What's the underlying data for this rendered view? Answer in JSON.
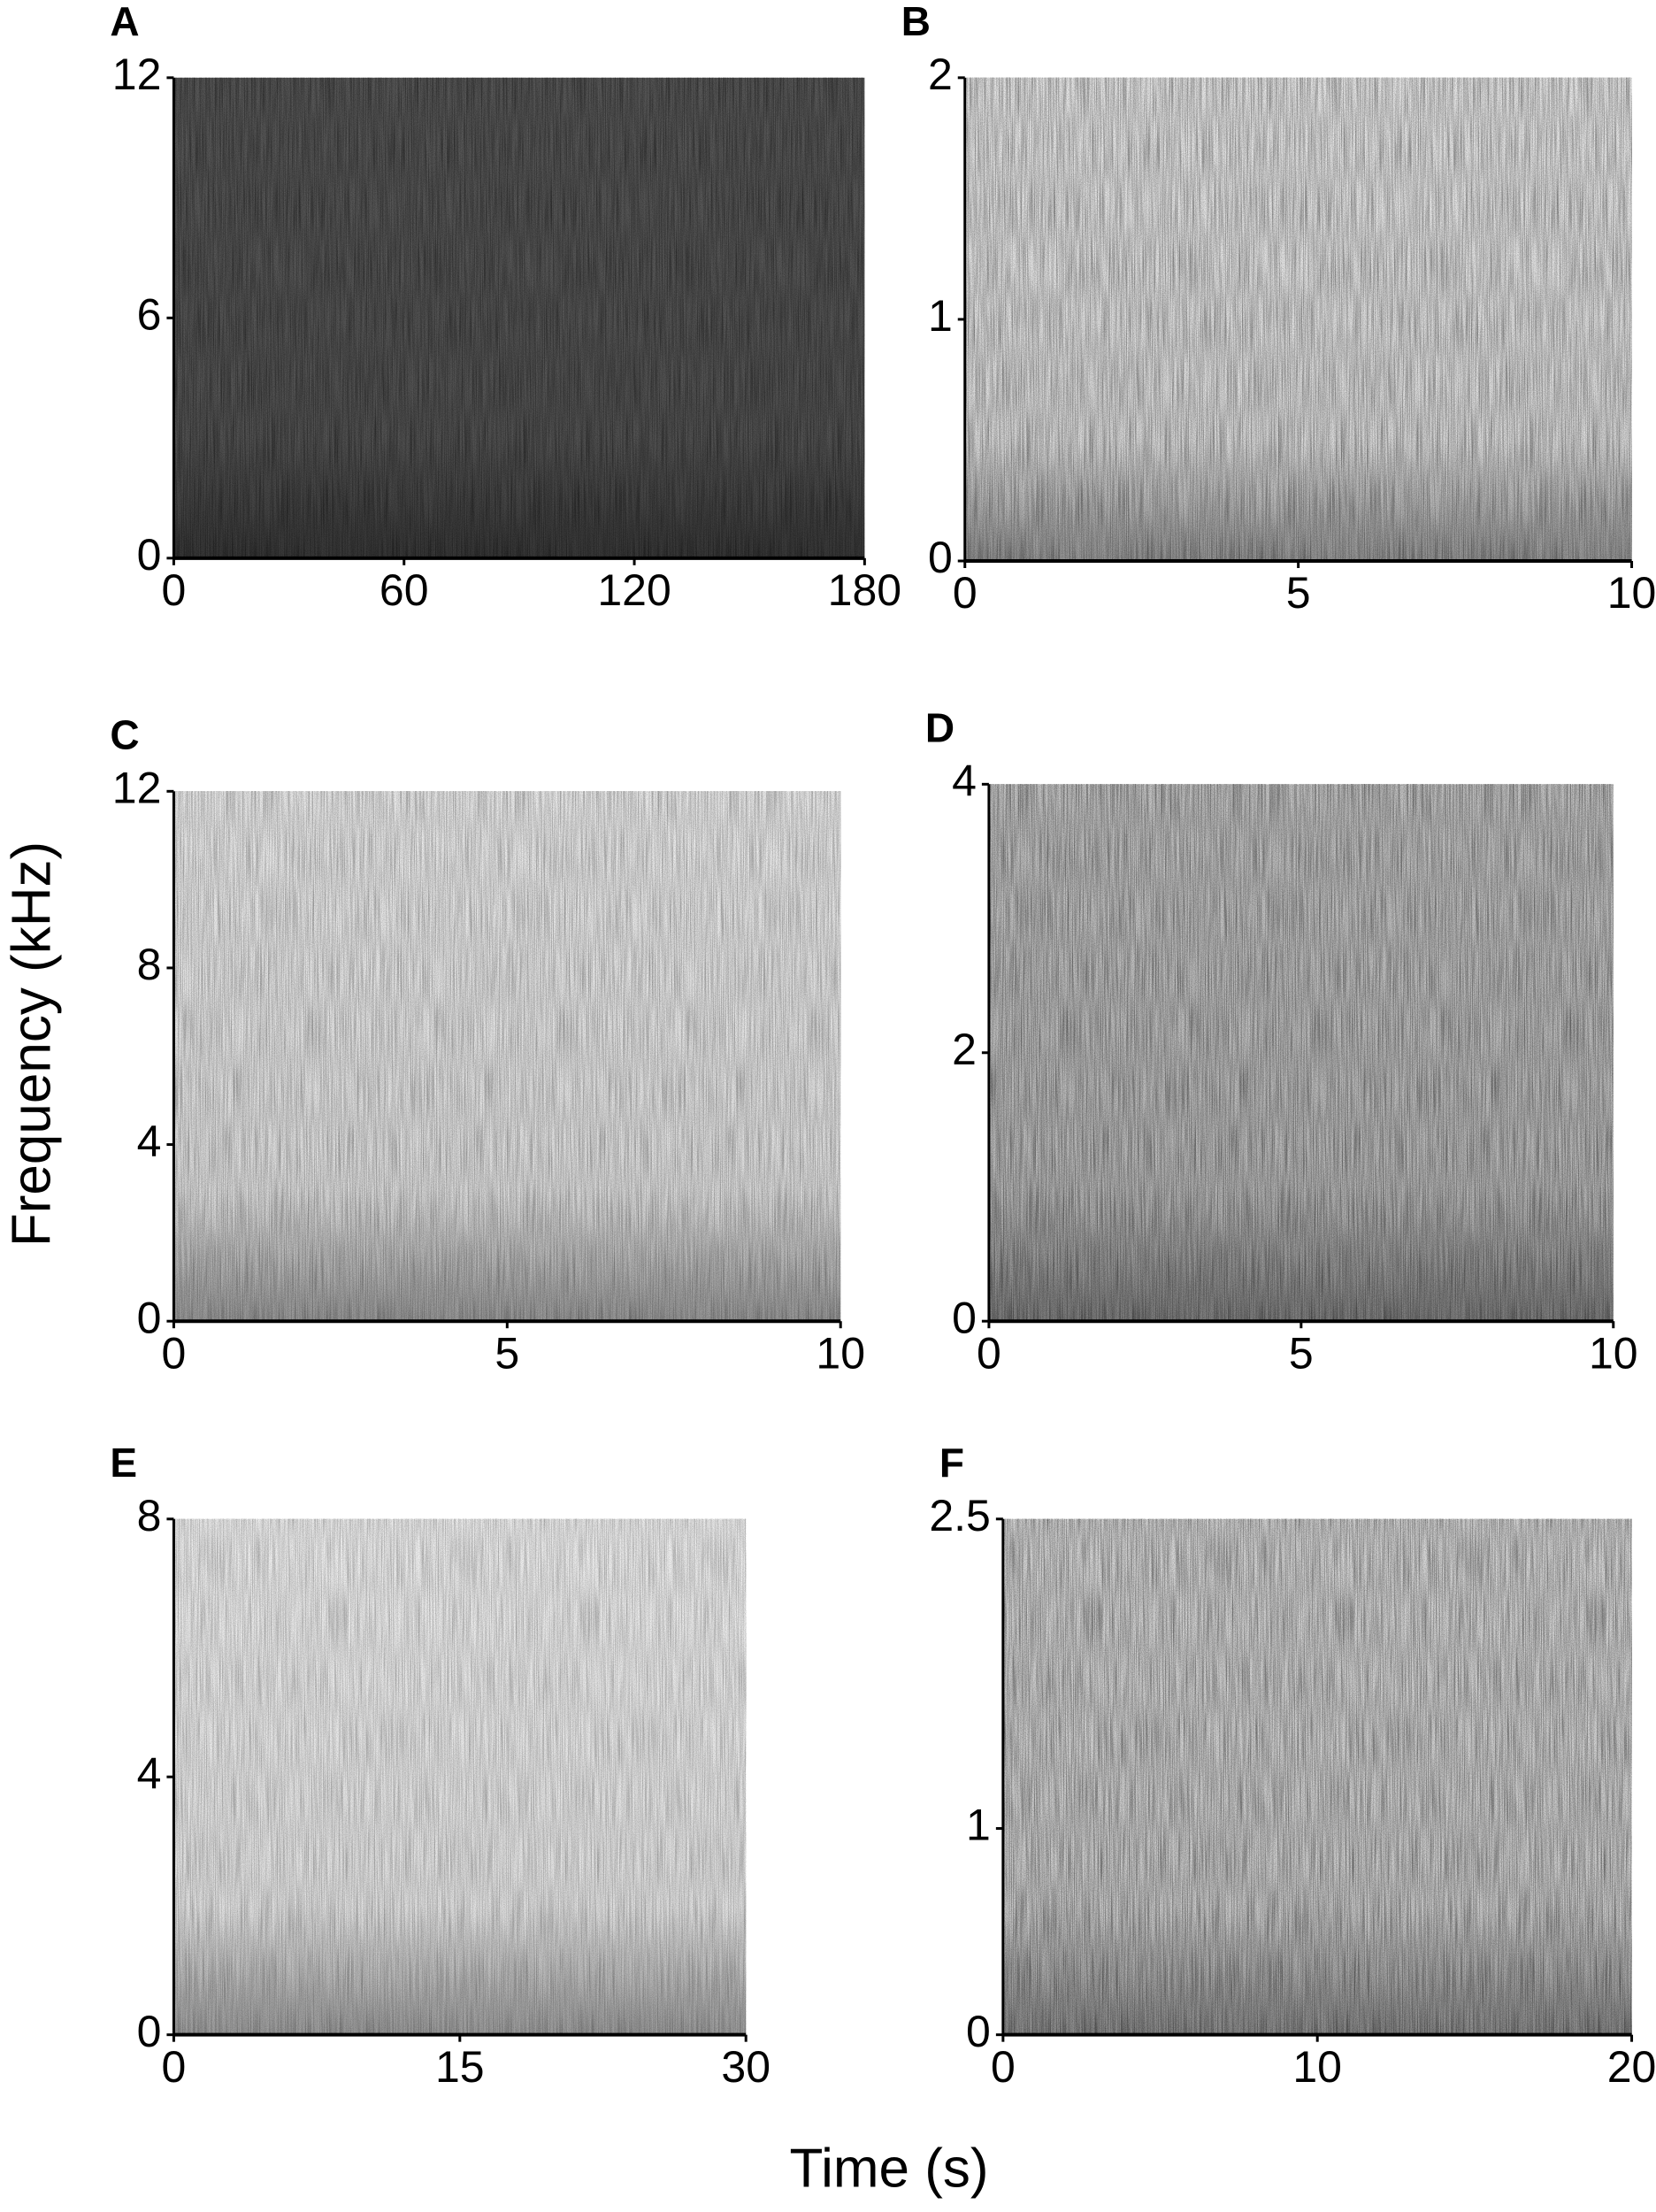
{
  "figure": {
    "ylabel": "Frequency (kHz)",
    "xlabel": "Time (s)"
  },
  "chart_data": [
    {
      "type": "spectrogram",
      "label": "A",
      "xlim": [
        0,
        180
      ],
      "xticks": [
        0,
        60,
        120,
        180
      ],
      "ylim": [
        0,
        12
      ],
      "yticks": [
        0,
        6,
        12
      ]
    },
    {
      "type": "spectrogram",
      "label": "B",
      "xlim": [
        0,
        10
      ],
      "xticks": [
        0,
        5,
        10
      ],
      "ylim": [
        0,
        2
      ],
      "yticks": [
        0,
        1,
        2
      ]
    },
    {
      "type": "spectrogram",
      "label": "C",
      "xlim": [
        0,
        10
      ],
      "xticks": [
        0,
        5,
        10
      ],
      "ylim": [
        0,
        12
      ],
      "yticks": [
        0,
        4,
        8,
        12
      ]
    },
    {
      "type": "spectrogram",
      "label": "D",
      "xlim": [
        0,
        10
      ],
      "xticks": [
        0,
        5,
        10
      ],
      "ylim": [
        0,
        4
      ],
      "yticks": [
        0,
        2,
        4
      ]
    },
    {
      "type": "spectrogram",
      "label": "E",
      "xlim": [
        0,
        30
      ],
      "xticks": [
        0,
        15,
        30
      ],
      "ylim": [
        0,
        8
      ],
      "yticks": [
        0,
        4,
        8
      ]
    },
    {
      "type": "spectrogram",
      "label": "F",
      "xlim": [
        0,
        20
      ],
      "xticks": [
        0,
        10,
        20
      ],
      "ylim": [
        0,
        2.5
      ],
      "yticks": [
        0,
        1,
        2.5
      ]
    }
  ]
}
